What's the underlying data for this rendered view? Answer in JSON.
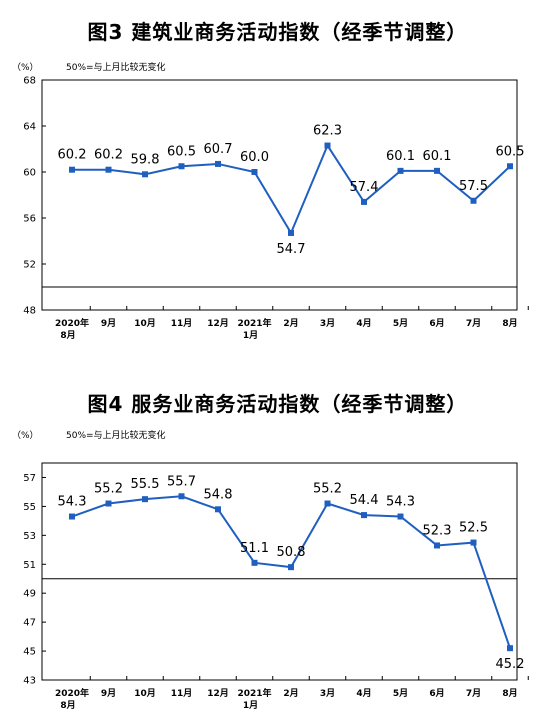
{
  "chart_data": [
    {
      "type": "line",
      "title": "图3  建筑业商务活动指数（经季节调整）",
      "unit_label": "（%）",
      "note": "50%=与上月比较无变化",
      "categories": [
        [
          "2020年",
          "8月"
        ],
        [
          "9月"
        ],
        [
          "10月"
        ],
        [
          "11月"
        ],
        [
          "12月"
        ],
        [
          "2021年",
          "1月"
        ],
        [
          "2月"
        ],
        [
          "3月"
        ],
        [
          "4月"
        ],
        [
          "5月"
        ],
        [
          "6月"
        ],
        [
          "7月"
        ],
        [
          "8月"
        ]
      ],
      "values": [
        60.2,
        60.2,
        59.8,
        60.5,
        60.7,
        60.0,
        54.7,
        62.3,
        57.4,
        60.1,
        60.1,
        57.5,
        60.5
      ],
      "data_labels": [
        "60.2",
        "60.2",
        "59.8",
        "60.5",
        "60.7",
        "60.0",
        "54.7",
        "62.3",
        "57.4",
        "60.1",
        "60.1",
        "57.5",
        "60.5"
      ],
      "ylim": [
        48,
        68
      ],
      "yticks": [
        "48",
        "52",
        "56",
        "60",
        "64",
        "68"
      ],
      "reference_line": 50,
      "color": "#1f5fbf"
    },
    {
      "type": "line",
      "title": "图4  服务业商务活动指数（经季节调整）",
      "unit_label": "（%）",
      "note": "50%=与上月比较无变化",
      "categories": [
        [
          "2020年",
          "8月"
        ],
        [
          "9月"
        ],
        [
          "10月"
        ],
        [
          "11月"
        ],
        [
          "12月"
        ],
        [
          "2021年",
          "1月"
        ],
        [
          "2月"
        ],
        [
          "3月"
        ],
        [
          "4月"
        ],
        [
          "5月"
        ],
        [
          "6月"
        ],
        [
          "7月"
        ],
        [
          "8月"
        ]
      ],
      "values": [
        54.3,
        55.2,
        55.5,
        55.7,
        54.8,
        51.1,
        50.8,
        55.2,
        54.4,
        54.3,
        52.3,
        52.5,
        45.2
      ],
      "data_labels": [
        "54.3",
        "55.2",
        "55.5",
        "55.7",
        "54.8",
        "51.1",
        "50.8",
        "55.2",
        "54.4",
        "54.3",
        "52.3",
        "52.5",
        "45.2"
      ],
      "ylim": [
        43,
        58
      ],
      "yticks": [
        "43",
        "45",
        "47",
        "49",
        "51",
        "53",
        "55",
        "57"
      ],
      "reference_line": 50,
      "color": "#1f5fbf"
    }
  ]
}
